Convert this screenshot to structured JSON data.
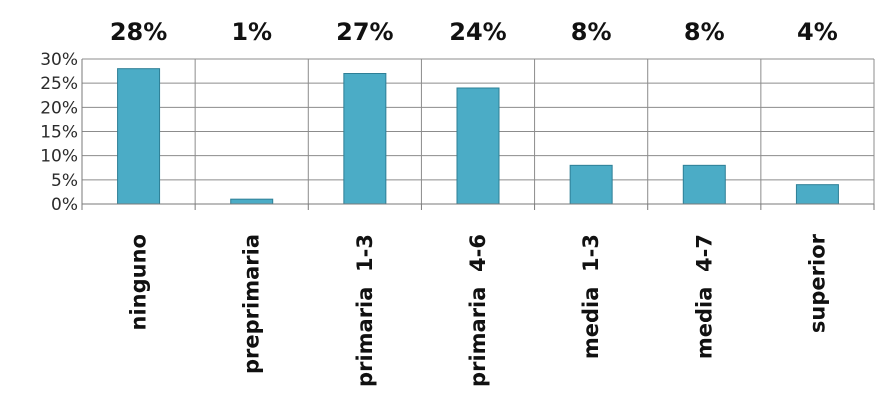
{
  "chart_data": {
    "type": "bar",
    "categories": [
      "ninguno",
      "preprimaria",
      "primaria  1-3",
      "primaria  4-6",
      "media  1-3",
      "media  4-7",
      "superior"
    ],
    "values": [
      28,
      1,
      27,
      24,
      8,
      8,
      4
    ],
    "data_labels": [
      "28%",
      "1%",
      "27%",
      "24%",
      "8%",
      "8%",
      "4%"
    ],
    "y_ticks": [
      {
        "value": 0,
        "label": "0%"
      },
      {
        "value": 5,
        "label": "5%"
      },
      {
        "value": 10,
        "label": "10%"
      },
      {
        "value": 15,
        "label": "15%"
      },
      {
        "value": 20,
        "label": "20%"
      },
      {
        "value": 25,
        "label": "25%"
      },
      {
        "value": 30,
        "label": "30%"
      }
    ],
    "ylim": [
      0,
      30
    ],
    "title": "",
    "xlabel": "",
    "ylabel": "",
    "grid": true,
    "legend": "none",
    "colors": {
      "bar_fill": "#4bacc6",
      "bar_stroke": "#2e7f96",
      "grid": "#8c8c8c",
      "axis": "#7a7a7a"
    }
  }
}
